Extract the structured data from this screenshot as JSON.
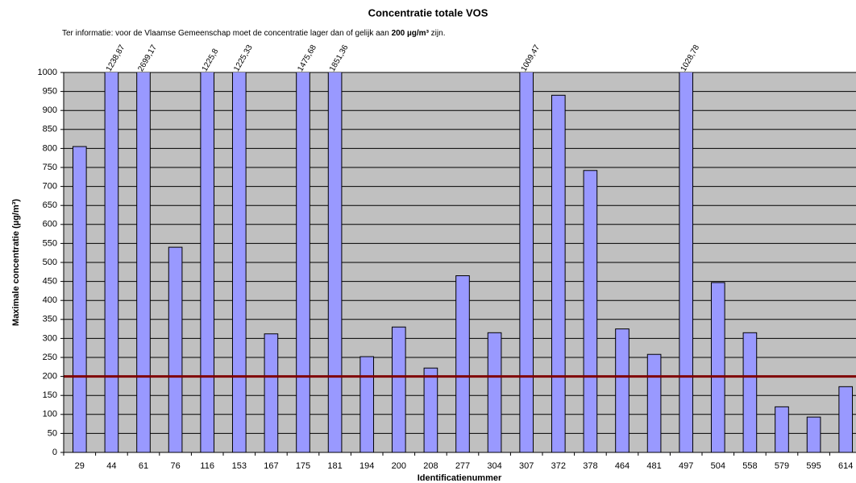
{
  "chart_data": {
    "type": "bar",
    "title": "Concentratie totale VOS",
    "subtitle": [
      "Ter informatie: voor de Vlaamse Gemeenschap moet de concentratie lager dan of gelijk aan ",
      "200 µg/m³",
      " zijn."
    ],
    "x_label": "Identificatienummer",
    "y_label": "Maximale concentratie (µg/m³)",
    "categories": [
      "29",
      "44",
      "61",
      "76",
      "116",
      "153",
      "167",
      "175",
      "181",
      "194",
      "200",
      "208",
      "277",
      "304",
      "307",
      "372",
      "378",
      "464",
      "481",
      "497",
      "504",
      "558",
      "579",
      "595",
      "614"
    ],
    "values": [
      805,
      1238.87,
      2699.17,
      540,
      1225.8,
      1225.33,
      312,
      1475.68,
      1851.36,
      252,
      330,
      222,
      465,
      315,
      1009.47,
      940,
      742,
      325,
      258,
      1028.78,
      447,
      315,
      120,
      93,
      173
    ],
    "value_labels": [
      null,
      "1238,87",
      "2699,17",
      null,
      "1225,8",
      "1225,33",
      null,
      "1475,68",
      "1851,36",
      null,
      null,
      null,
      null,
      null,
      "1009,47",
      null,
      null,
      null,
      null,
      "1028,78",
      null,
      null,
      null,
      null,
      null
    ],
    "color": "#9999ff",
    "threshold": {
      "value": 200,
      "color": "#800000"
    },
    "ylim": [
      0,
      1000
    ],
    "yticks": [
      0,
      50,
      100,
      150,
      200,
      250,
      300,
      350,
      400,
      450,
      500,
      550,
      600,
      650,
      700,
      750,
      800,
      850,
      900,
      950,
      1000
    ],
    "grid": true,
    "plot_background": "#c0c0c0"
  }
}
